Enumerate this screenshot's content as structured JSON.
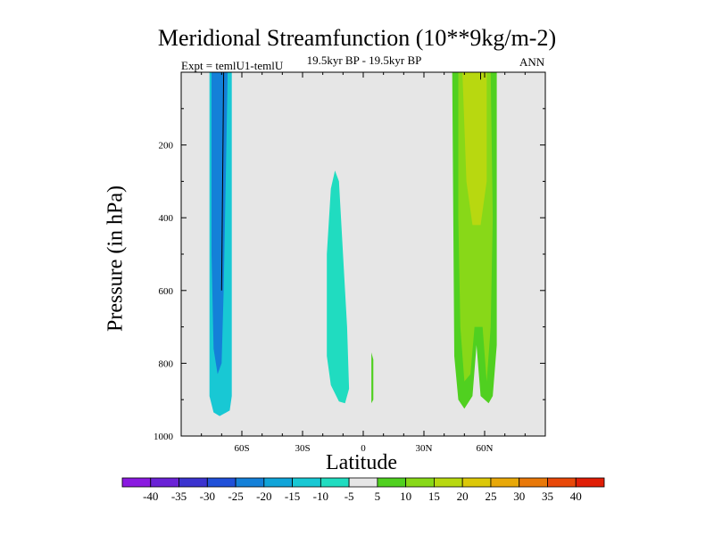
{
  "chart_data": {
    "type": "contour",
    "title": "Meridional Streamfunction (10**9kg/m-2)",
    "subtitle": "19.5kyr BP - 19.5kyr BP",
    "left_label": "Expt = temlU1-temlU",
    "right_label": "ANN",
    "xlabel": "Latitude",
    "ylabel": "Pressure (in hPa)",
    "xlim": [
      -90,
      90
    ],
    "ylim": [
      1000,
      0
    ],
    "x_ticks": [
      {
        "value": -60,
        "label": "60S"
      },
      {
        "value": -30,
        "label": "30S"
      },
      {
        "value": 0,
        "label": "0"
      },
      {
        "value": 30,
        "label": "30N"
      },
      {
        "value": 60,
        "label": "60N"
      }
    ],
    "y_ticks": [
      {
        "value": 200,
        "label": "200"
      },
      {
        "value": 400,
        "label": "400"
      },
      {
        "value": 600,
        "label": "600"
      },
      {
        "value": 800,
        "label": "800"
      },
      {
        "value": 1000,
        "label": "1000"
      }
    ],
    "background_color": "#e6e6e6",
    "colorbar": {
      "labels": [
        "-40",
        "-35",
        "-30",
        "-25",
        "-20",
        "-15",
        "-10",
        "-5",
        "5",
        "10",
        "15",
        "20",
        "25",
        "30",
        "35",
        "40"
      ],
      "colors": [
        "#8a1ae0",
        "#6a22d6",
        "#3b33cf",
        "#2050d8",
        "#1480d8",
        "#10a4d8",
        "#18c8d4",
        "#20dcc0",
        "#e6e6e6",
        "#50d020",
        "#88d818",
        "#b8d810",
        "#dcc808",
        "#e8a808",
        "#e87808",
        "#e84808",
        "#e01e06"
      ]
    },
    "regions": [
      {
        "name": "southern-cell-outer",
        "color": "#18c8d4",
        "points": [
          [
            -76,
            0
          ],
          [
            -65,
            0
          ],
          [
            -65,
            890
          ],
          [
            -66,
            930
          ],
          [
            -71,
            945
          ],
          [
            -74,
            935
          ],
          [
            -76,
            890
          ]
        ]
      },
      {
        "name": "southern-cell-core",
        "color": "#1480d8",
        "points": [
          [
            -75,
            0
          ],
          [
            -67,
            0
          ],
          [
            -68,
            300
          ],
          [
            -69,
            600
          ],
          [
            -70,
            800
          ],
          [
            -72,
            830
          ],
          [
            -74,
            760
          ],
          [
            -75,
            500
          ]
        ]
      },
      {
        "name": "equatorial-cell",
        "color": "#20dcc0",
        "points": [
          [
            -14,
            270
          ],
          [
            -12,
            300
          ],
          [
            -9,
            600
          ],
          [
            -8,
            700
          ],
          [
            -7,
            870
          ],
          [
            -9,
            910
          ],
          [
            -12,
            905
          ],
          [
            -16,
            860
          ],
          [
            -18,
            780
          ],
          [
            -18,
            500
          ],
          [
            -16,
            320
          ]
        ]
      },
      {
        "name": "small-positive-cell",
        "color": "#50d020",
        "points": [
          [
            4,
            770
          ],
          [
            5,
            790
          ],
          [
            5,
            900
          ],
          [
            4,
            910
          ],
          [
            4,
            850
          ]
        ]
      },
      {
        "name": "northern-cell-outer",
        "color": "#50d020",
        "points": [
          [
            44,
            0
          ],
          [
            66,
            0
          ],
          [
            66,
            750
          ],
          [
            64,
            890
          ],
          [
            62,
            910
          ],
          [
            58,
            890
          ],
          [
            56,
            750
          ],
          [
            54,
            890
          ],
          [
            50,
            925
          ],
          [
            47,
            900
          ],
          [
            45,
            780
          ]
        ]
      },
      {
        "name": "northern-cell-mid",
        "color": "#88d818",
        "points": [
          [
            47,
            0
          ],
          [
            63,
            0
          ],
          [
            64,
            400
          ],
          [
            63,
            700
          ],
          [
            61,
            850
          ],
          [
            59,
            700
          ],
          [
            55,
            700
          ],
          [
            53,
            830
          ],
          [
            50,
            850
          ],
          [
            48,
            700
          ],
          [
            47,
            400
          ]
        ]
      },
      {
        "name": "northern-cell-core",
        "color": "#b8d810",
        "points": [
          [
            49,
            0
          ],
          [
            61,
            0
          ],
          [
            61,
            300
          ],
          [
            58,
            420
          ],
          [
            54,
            420
          ],
          [
            51,
            300
          ]
        ]
      }
    ],
    "contour_lines": [
      {
        "name": "southern-contour-line",
        "points": [
          [
            -69,
            0
          ],
          [
            -70,
            600
          ]
        ]
      },
      {
        "name": "northern-contour-line",
        "points": [
          [
            58,
            0
          ],
          [
            58,
            20
          ]
        ]
      }
    ]
  }
}
